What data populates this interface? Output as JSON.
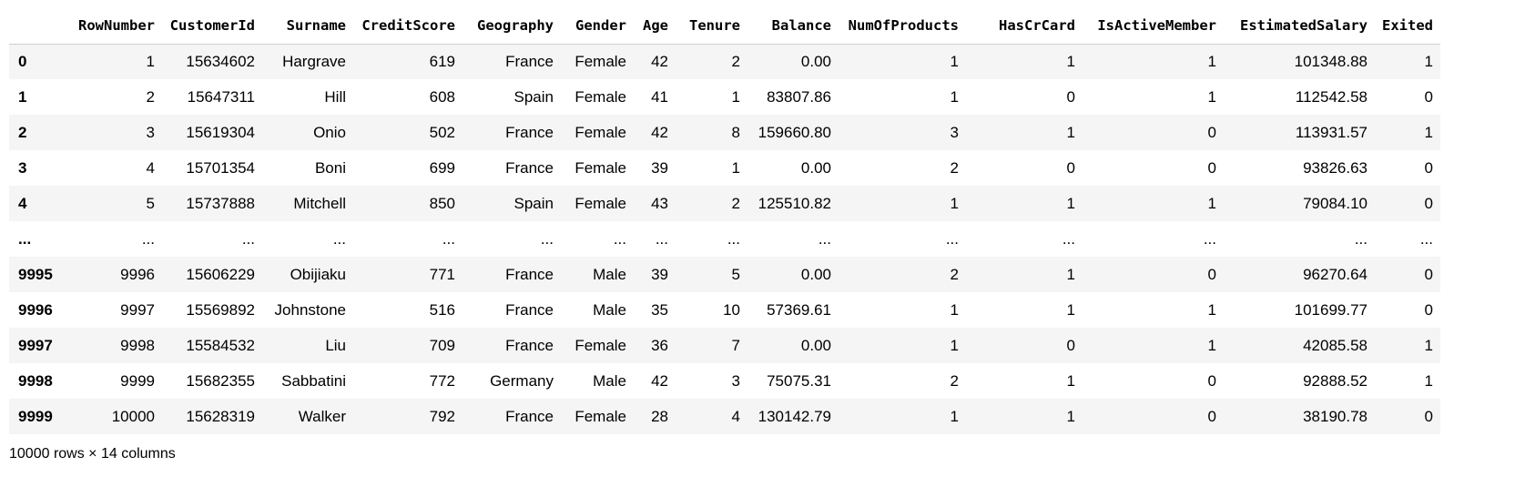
{
  "dataframe": {
    "index_header": "",
    "columns": [
      "RowNumber",
      "CustomerId",
      "Surname",
      "CreditScore",
      "Geography",
      "Gender",
      "Age",
      "Tenure",
      "Balance",
      "NumOfProducts",
      "HasCrCard",
      "IsActiveMember",
      "EstimatedSalary",
      "Exited"
    ],
    "rows": [
      {
        "index": "0",
        "cells": [
          "1",
          "15634602",
          "Hargrave",
          "619",
          "France",
          "Female",
          "42",
          "2",
          "0.00",
          "1",
          "1",
          "1",
          "101348.88",
          "1"
        ]
      },
      {
        "index": "1",
        "cells": [
          "2",
          "15647311",
          "Hill",
          "608",
          "Spain",
          "Female",
          "41",
          "1",
          "83807.86",
          "1",
          "0",
          "1",
          "112542.58",
          "0"
        ]
      },
      {
        "index": "2",
        "cells": [
          "3",
          "15619304",
          "Onio",
          "502",
          "France",
          "Female",
          "42",
          "8",
          "159660.80",
          "3",
          "1",
          "0",
          "113931.57",
          "1"
        ]
      },
      {
        "index": "3",
        "cells": [
          "4",
          "15701354",
          "Boni",
          "699",
          "France",
          "Female",
          "39",
          "1",
          "0.00",
          "2",
          "0",
          "0",
          "93826.63",
          "0"
        ]
      },
      {
        "index": "4",
        "cells": [
          "5",
          "15737888",
          "Mitchell",
          "850",
          "Spain",
          "Female",
          "43",
          "2",
          "125510.82",
          "1",
          "1",
          "1",
          "79084.10",
          "0"
        ]
      },
      {
        "index": "...",
        "cells": [
          "...",
          "...",
          "...",
          "...",
          "...",
          "...",
          "...",
          "...",
          "...",
          "...",
          "...",
          "...",
          "...",
          "..."
        ]
      },
      {
        "index": "9995",
        "cells": [
          "9996",
          "15606229",
          "Obijiaku",
          "771",
          "France",
          "Male",
          "39",
          "5",
          "0.00",
          "2",
          "1",
          "0",
          "96270.64",
          "0"
        ]
      },
      {
        "index": "9996",
        "cells": [
          "9997",
          "15569892",
          "Johnstone",
          "516",
          "France",
          "Male",
          "35",
          "10",
          "57369.61",
          "1",
          "1",
          "1",
          "101699.77",
          "0"
        ]
      },
      {
        "index": "9997",
        "cells": [
          "9998",
          "15584532",
          "Liu",
          "709",
          "France",
          "Female",
          "36",
          "7",
          "0.00",
          "1",
          "0",
          "1",
          "42085.58",
          "1"
        ]
      },
      {
        "index": "9998",
        "cells": [
          "9999",
          "15682355",
          "Sabbatini",
          "772",
          "Germany",
          "Male",
          "42",
          "3",
          "75075.31",
          "2",
          "1",
          "0",
          "92888.52",
          "1"
        ]
      },
      {
        "index": "9999",
        "cells": [
          "10000",
          "15628319",
          "Walker",
          "792",
          "France",
          "Female",
          "28",
          "4",
          "130142.79",
          "1",
          "1",
          "0",
          "38190.78",
          "0"
        ]
      }
    ],
    "shape_text": "10000 rows × 14 columns",
    "colors": {
      "stripe": "#f5f5f5",
      "background": "#ffffff",
      "header_border": "#d0d0d0"
    }
  }
}
